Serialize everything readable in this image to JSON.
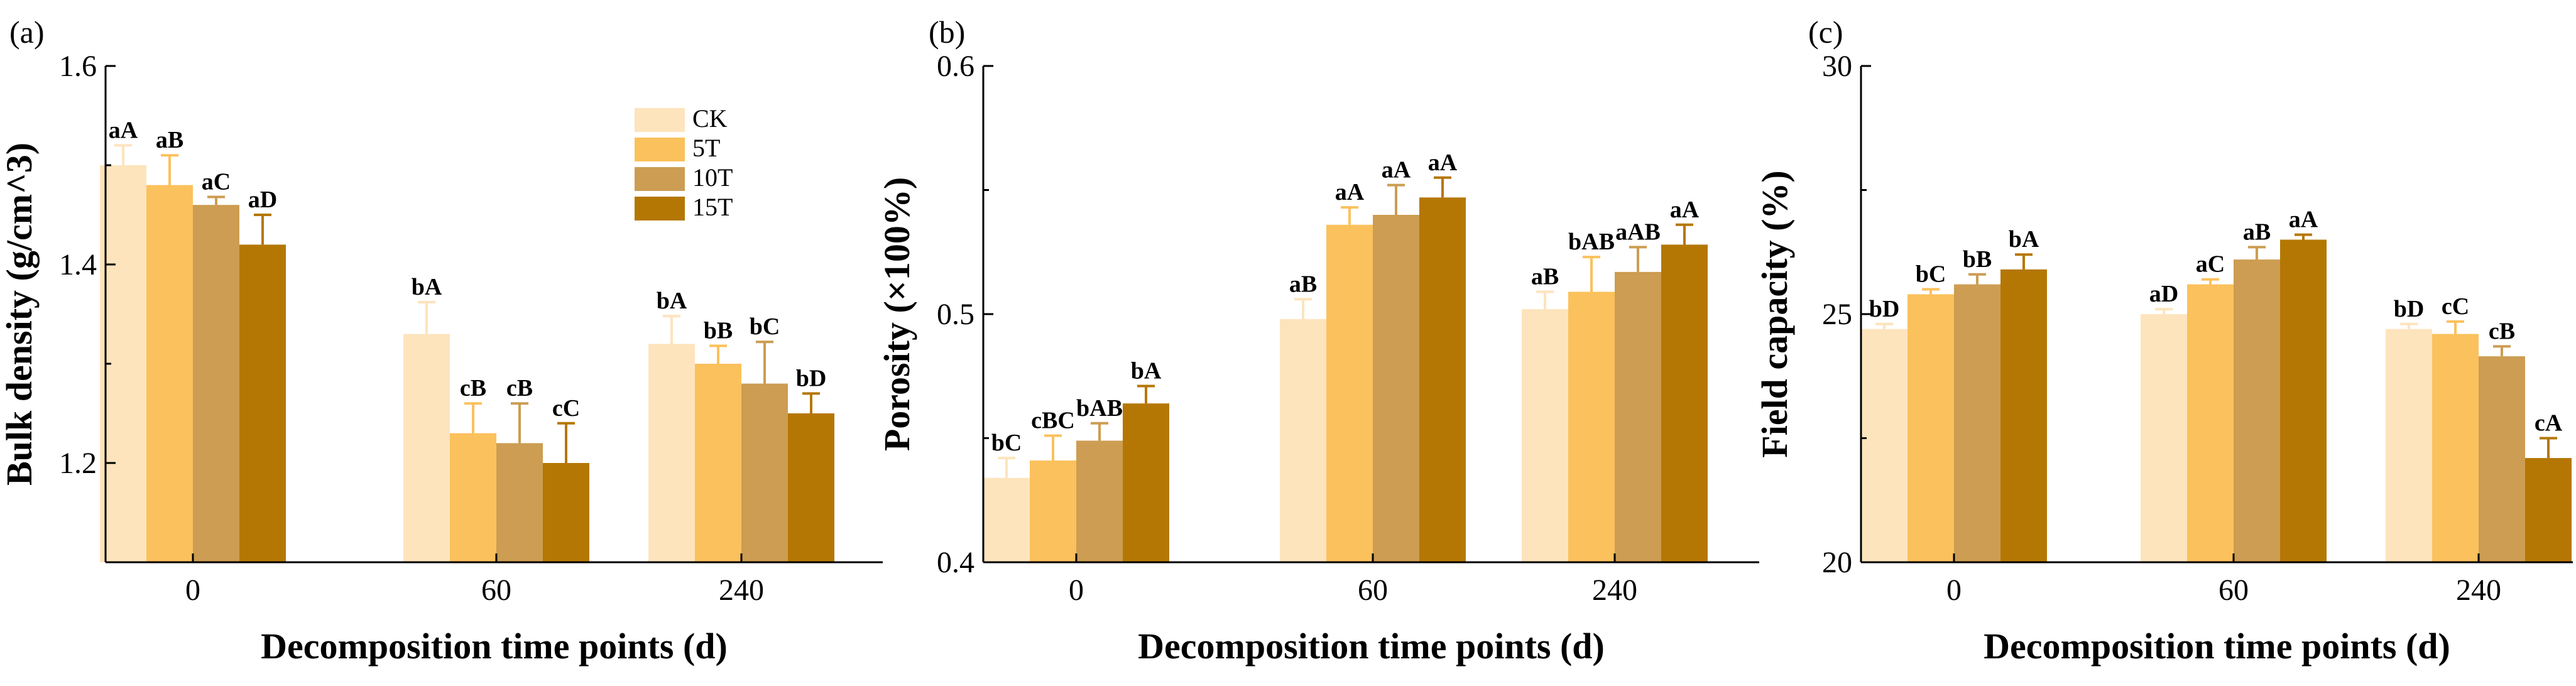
{
  "series_colors": {
    "CK": "#fde4bd",
    "5T": "#fbc15c",
    "10T": "#cc9d52",
    "15T": "#b57704"
  },
  "legend": [
    "CK",
    "5T",
    "10T",
    "15T"
  ],
  "chart_data": [
    {
      "panel": "(a)",
      "type": "bar",
      "title": "",
      "xlabel": "Decomposition time points (d)",
      "ylabel": "Bulk density (g/cm^3)",
      "categories": [
        "0",
        "60",
        "240"
      ],
      "ylim": [
        1.1,
        1.6
      ],
      "yticks": [
        "1.2",
        "1.4",
        "1.6"
      ],
      "ytick_values": [
        1.2,
        1.4,
        1.6
      ],
      "legend_position": "top-right",
      "series": [
        {
          "name": "CK",
          "values": [
            1.5,
            1.33,
            1.32
          ],
          "errors": [
            0.02,
            0.032,
            0.028
          ],
          "labels": [
            "aA",
            "bA",
            "bA"
          ]
        },
        {
          "name": "5T",
          "values": [
            1.48,
            1.23,
            1.3
          ],
          "errors": [
            0.03,
            0.03,
            0.018
          ],
          "labels": [
            "aB",
            "cB",
            "bB"
          ]
        },
        {
          "name": "10T",
          "values": [
            1.46,
            1.22,
            1.28
          ],
          "errors": [
            0.008,
            0.04,
            0.042
          ],
          "labels": [
            "aC",
            "cB",
            "bC"
          ]
        },
        {
          "name": "15T",
          "values": [
            1.42,
            1.2,
            1.25
          ],
          "errors": [
            0.03,
            0.04,
            0.02
          ],
          "labels": [
            "aD",
            "cC",
            "bD"
          ]
        }
      ]
    },
    {
      "panel": "(b)",
      "type": "bar",
      "title": "",
      "xlabel": "Decomposition time points (d)",
      "ylabel": "Porosity (×100%)",
      "categories": [
        "0",
        "60",
        "240"
      ],
      "ylim": [
        0.4,
        0.6
      ],
      "yticks": [
        "0.4",
        "0.5",
        "0.6"
      ],
      "ytick_values": [
        0.4,
        0.5,
        0.6
      ],
      "series": [
        {
          "name": "CK",
          "values": [
            0.434,
            0.498,
            0.502
          ],
          "errors": [
            0.008,
            0.008,
            0.007
          ],
          "labels": [
            "bC",
            "aB",
            "aB"
          ]
        },
        {
          "name": "5T",
          "values": [
            0.441,
            0.536,
            0.509
          ],
          "errors": [
            0.01,
            0.007,
            0.014
          ],
          "labels": [
            "cBC",
            "aA",
            "bAB"
          ]
        },
        {
          "name": "10T",
          "values": [
            0.449,
            0.54,
            0.517
          ],
          "errors": [
            0.007,
            0.012,
            0.01
          ],
          "labels": [
            "bAB",
            "aA",
            "aAB"
          ]
        },
        {
          "name": "15T",
          "values": [
            0.464,
            0.547,
            0.528
          ],
          "errors": [
            0.007,
            0.008,
            0.008
          ],
          "labels": [
            "bA",
            "aA",
            "aA"
          ]
        }
      ]
    },
    {
      "panel": "(c)",
      "type": "bar",
      "title": "",
      "xlabel": "Decomposition time points (d)",
      "ylabel": "Field capacity (%)",
      "categories": [
        "0",
        "60",
        "240"
      ],
      "ylim": [
        20,
        30
      ],
      "yticks": [
        "20",
        "25",
        "30"
      ],
      "ytick_values": [
        20,
        25,
        30
      ],
      "series": [
        {
          "name": "CK",
          "values": [
            24.7,
            25.0,
            24.7
          ],
          "errors": [
            0.1,
            0.1,
            0.1
          ],
          "labels": [
            "bD",
            "aD",
            "bD"
          ]
        },
        {
          "name": "5T",
          "values": [
            25.4,
            25.6,
            24.6
          ],
          "errors": [
            0.1,
            0.1,
            0.25
          ],
          "labels": [
            "bC",
            "aC",
            "cC"
          ]
        },
        {
          "name": "10T",
          "values": [
            25.6,
            26.1,
            24.15
          ],
          "errors": [
            0.2,
            0.25,
            0.2
          ],
          "labels": [
            "bB",
            "aB",
            "cB"
          ]
        },
        {
          "name": "15T",
          "values": [
            25.9,
            26.5,
            22.1
          ],
          "errors": [
            0.3,
            0.1,
            0.4
          ],
          "labels": [
            "bA",
            "aA",
            "cA"
          ]
        }
      ]
    }
  ]
}
